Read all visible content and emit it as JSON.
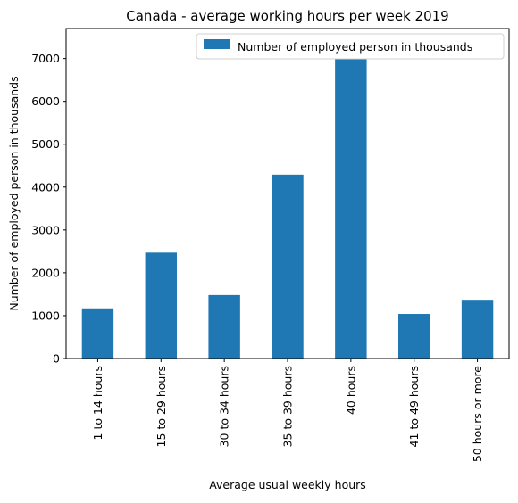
{
  "chart_data": {
    "type": "bar",
    "title": "Canada - average working hours per week 2019",
    "xlabel": "Average usual weekly hours",
    "ylabel": "Number of employed person in thousands",
    "categories": [
      "1 to 14 hours",
      "15 to 29 hours",
      "30 to 34 hours",
      "35 to 39 hours",
      "40 hours",
      "41 to 49 hours",
      "50 hours or more"
    ],
    "series": [
      {
        "name": "Number of employed person in thousands",
        "values": [
          1170,
          2470,
          1480,
          4290,
          7310,
          1040,
          1370
        ],
        "color": "#1f77b4"
      }
    ],
    "ylim": [
      0,
      7700
    ],
    "yticks": [
      0,
      1000,
      2000,
      3000,
      4000,
      5000,
      6000,
      7000
    ],
    "grid": false,
    "legend_position": "top-right"
  }
}
